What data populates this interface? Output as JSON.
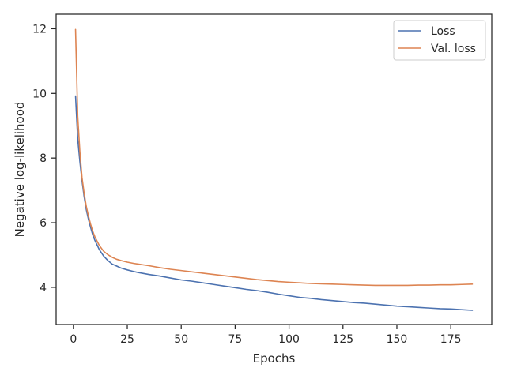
{
  "chart_data": {
    "type": "line",
    "title": "",
    "xlabel": "Epochs",
    "ylabel": "Negative log-likelihood",
    "xlim": [
      -8,
      194
    ],
    "ylim": [
      2.85,
      12.45
    ],
    "xticks": [
      0,
      25,
      50,
      75,
      100,
      125,
      150,
      175
    ],
    "yticks": [
      4,
      6,
      8,
      10,
      12
    ],
    "grid": false,
    "legend_position": "top-right",
    "series": [
      {
        "name": "Loss",
        "color": "#4c72b0",
        "x": [
          1,
          2,
          3,
          4,
          5,
          6,
          7,
          8,
          9,
          10,
          12,
          14,
          16,
          18,
          20,
          22,
          25,
          28,
          30,
          35,
          40,
          45,
          50,
          55,
          60,
          65,
          70,
          75,
          80,
          85,
          90,
          95,
          100,
          105,
          110,
          115,
          120,
          125,
          130,
          135,
          140,
          145,
          150,
          155,
          160,
          165,
          170,
          175,
          180,
          185
        ],
        "values": [
          9.92,
          8.6,
          7.9,
          7.3,
          6.8,
          6.4,
          6.1,
          5.85,
          5.62,
          5.45,
          5.17,
          4.97,
          4.83,
          4.72,
          4.66,
          4.6,
          4.54,
          4.49,
          4.46,
          4.4,
          4.35,
          4.29,
          4.23,
          4.19,
          4.14,
          4.09,
          4.04,
          3.99,
          3.94,
          3.9,
          3.85,
          3.79,
          3.74,
          3.69,
          3.66,
          3.62,
          3.59,
          3.56,
          3.53,
          3.51,
          3.48,
          3.45,
          3.42,
          3.4,
          3.38,
          3.36,
          3.34,
          3.33,
          3.31,
          3.29
        ]
      },
      {
        "name": "Val. loss",
        "color": "#dd8452",
        "x": [
          1,
          2,
          3,
          4,
          5,
          6,
          7,
          8,
          9,
          10,
          12,
          14,
          16,
          18,
          20,
          22,
          25,
          28,
          30,
          35,
          40,
          45,
          50,
          55,
          60,
          65,
          70,
          75,
          80,
          85,
          90,
          95,
          100,
          105,
          110,
          115,
          120,
          125,
          130,
          135,
          140,
          145,
          150,
          155,
          160,
          165,
          170,
          175,
          180,
          185
        ],
        "values": [
          11.98,
          9.3,
          8.2,
          7.4,
          6.9,
          6.5,
          6.2,
          5.95,
          5.73,
          5.56,
          5.3,
          5.12,
          5.01,
          4.93,
          4.87,
          4.83,
          4.78,
          4.74,
          4.72,
          4.67,
          4.61,
          4.56,
          4.52,
          4.48,
          4.44,
          4.4,
          4.36,
          4.32,
          4.28,
          4.24,
          4.21,
          4.18,
          4.16,
          4.14,
          4.12,
          4.11,
          4.1,
          4.09,
          4.08,
          4.07,
          4.06,
          4.06,
          4.06,
          4.06,
          4.07,
          4.07,
          4.08,
          4.08,
          4.09,
          4.1
        ]
      }
    ]
  }
}
